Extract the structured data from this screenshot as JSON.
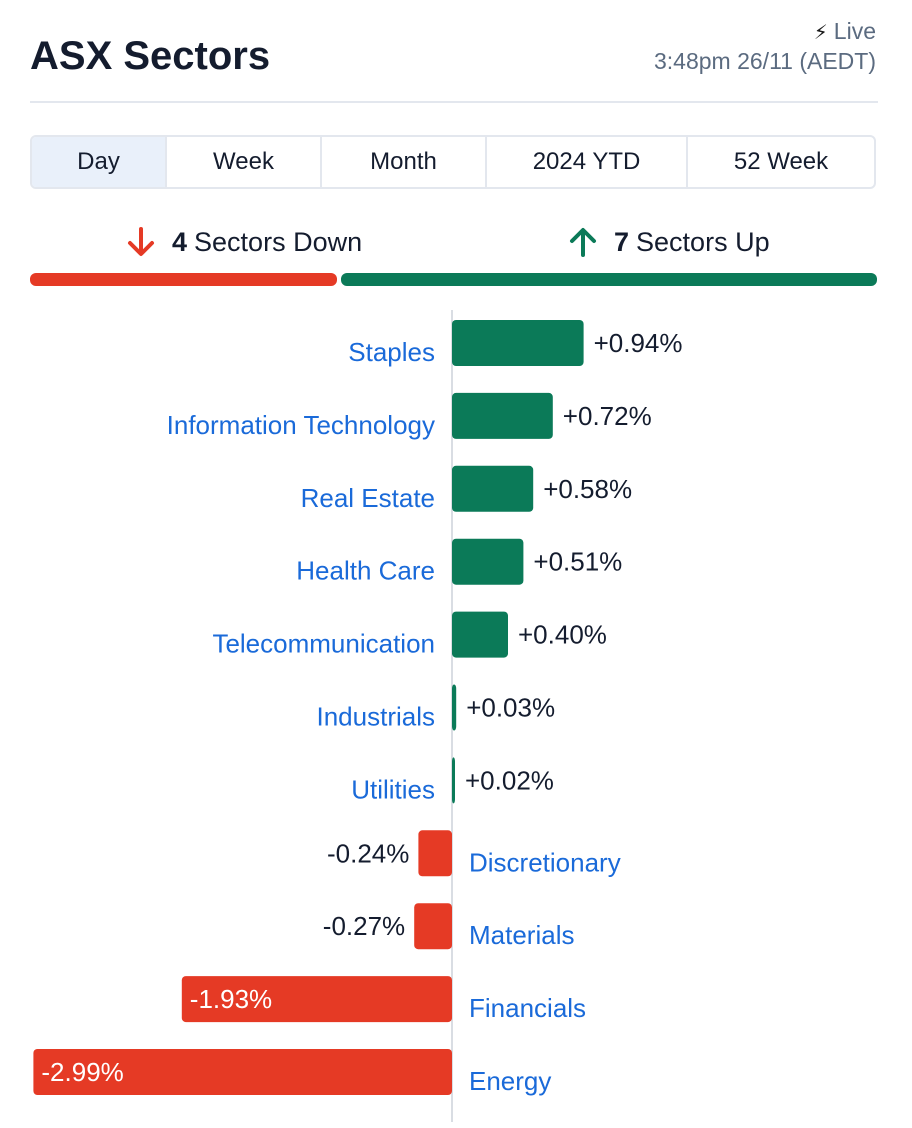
{
  "header": {
    "title": "ASX Sectors",
    "live_label": "Live",
    "timestamp": "3:48pm 26/11 (AEDT)"
  },
  "tabs": [
    {
      "label": "Day",
      "active": true
    },
    {
      "label": "Week",
      "active": false
    },
    {
      "label": "Month",
      "active": false
    },
    {
      "label": "2024 YTD",
      "active": false
    },
    {
      "label": "52 Week",
      "active": false
    }
  ],
  "summary": {
    "down_count": "4",
    "down_label": "Sectors Down",
    "up_count": "7",
    "up_label": "Sectors Up",
    "down_color": "#e53a25",
    "up_color": "#0b7a58"
  },
  "chart_data": {
    "type": "bar",
    "orientation": "horizontal",
    "categories": [
      "Staples",
      "Information Technology",
      "Real Estate",
      "Health Care",
      "Telecommunication",
      "Industrials",
      "Utilities",
      "Discretionary",
      "Materials",
      "Financials",
      "Energy"
    ],
    "values": [
      0.94,
      0.72,
      0.58,
      0.51,
      0.4,
      0.03,
      0.02,
      -0.24,
      -0.27,
      -1.93,
      -2.99
    ],
    "value_labels": [
      "+0.94%",
      "+0.72%",
      "+0.58%",
      "+0.51%",
      "+0.40%",
      "+0.03%",
      "+0.02%",
      "-0.24%",
      "-0.27%",
      "-1.93%",
      "-2.99%"
    ],
    "positive_color": "#0b7a58",
    "negative_color": "#e53a25",
    "label_color": "#1a6ad9"
  }
}
